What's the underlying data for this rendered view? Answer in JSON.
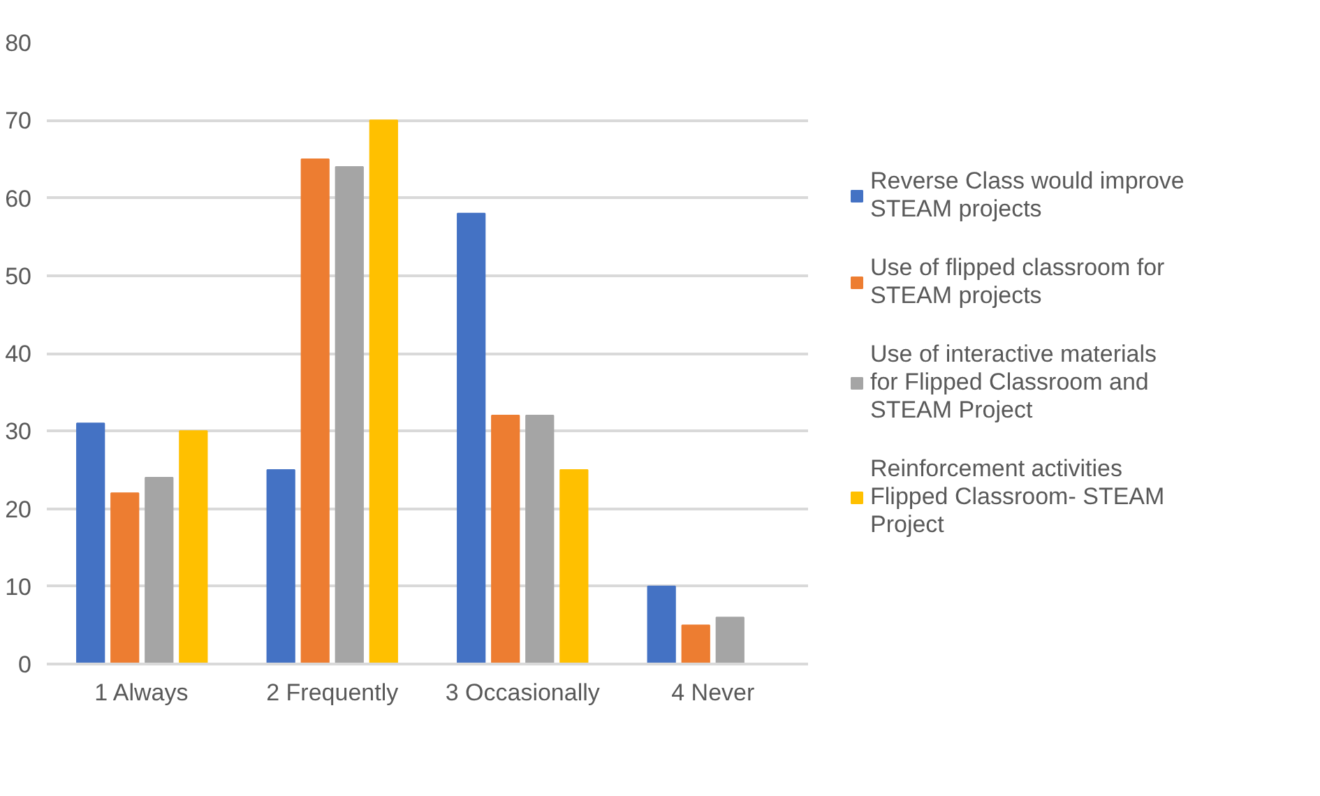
{
  "chart_data": {
    "type": "bar",
    "categories": [
      "1 Always",
      "2 Frequently",
      "3 Occasionally",
      "4 Never"
    ],
    "series": [
      {
        "name": "Reverse Class would improve STEAM projects",
        "color": "#4472c4",
        "values": [
          31,
          25,
          58,
          10
        ]
      },
      {
        "name": "Use of flipped classroom for STEAM projects",
        "color": "#ed7d31",
        "values": [
          22,
          65,
          32,
          5
        ]
      },
      {
        "name": "Use of interactive materials for Flipped Classroom and STEAM Project",
        "color": "#a5a5a5",
        "values": [
          24,
          64,
          32,
          6
        ]
      },
      {
        "name": "Reinforcement activities Flipped Classroom- STEAM Project",
        "color": "#ffc000",
        "values": [
          30,
          70,
          25,
          0
        ]
      }
    ],
    "ylim": [
      0,
      80
    ],
    "yticks": [
      0,
      10,
      20,
      30,
      40,
      50,
      60,
      70,
      80
    ],
    "grid": "y",
    "legend": "right"
  }
}
